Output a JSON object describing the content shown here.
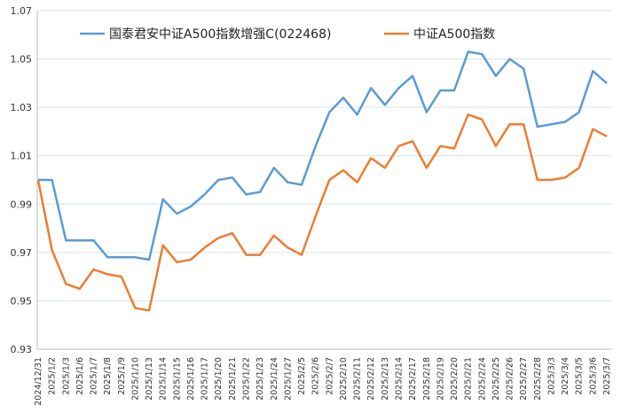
{
  "chart_data": {
    "type": "line",
    "categories": [
      "2024/12/31",
      "2025/1/2",
      "2025/1/3",
      "2025/1/6",
      "2025/1/7",
      "2025/1/8",
      "2025/1/9",
      "2025/1/10",
      "2025/1/13",
      "2025/1/14",
      "2025/1/15",
      "2025/1/16",
      "2025/1/17",
      "2025/1/20",
      "2025/1/21",
      "2025/1/22",
      "2025/1/23",
      "2025/1/24",
      "2025/1/27",
      "2025/2/5",
      "2025/2/6",
      "2025/2/7",
      "2025/2/10",
      "2025/2/11",
      "2025/2/12",
      "2025/2/13",
      "2025/2/14",
      "2025/2/17",
      "2025/2/18",
      "2025/2/19",
      "2025/2/20",
      "2025/2/21",
      "2025/2/24",
      "2025/2/25",
      "2025/2/26",
      "2025/2/27",
      "2025/2/28",
      "2025/3/3",
      "2025/3/4",
      "2025/3/5",
      "2025/3/6",
      "2025/3/7"
    ],
    "series": [
      {
        "name": "国泰君安中证A500指数增强C(022468)",
        "color": "#5b9bd5",
        "values": [
          1.0,
          1.0,
          0.975,
          0.975,
          0.975,
          0.968,
          0.968,
          0.968,
          0.967,
          0.992,
          0.986,
          0.989,
          0.994,
          1.0,
          1.001,
          0.994,
          0.995,
          1.005,
          0.999,
          0.998,
          1.014,
          1.028,
          1.034,
          1.027,
          1.038,
          1.031,
          1.038,
          1.043,
          1.028,
          1.037,
          1.037,
          1.053,
          1.052,
          1.043,
          1.05,
          1.046,
          1.022,
          1.023,
          1.024,
          1.028,
          1.045,
          1.04
        ]
      },
      {
        "name": "中证A500指数",
        "color": "#ed7d31",
        "values": [
          1.0,
          0.971,
          0.957,
          0.955,
          0.963,
          0.961,
          0.96,
          0.947,
          0.946,
          0.973,
          0.966,
          0.967,
          0.972,
          0.976,
          0.978,
          0.969,
          0.969,
          0.977,
          0.972,
          0.969,
          0.985,
          1.0,
          1.004,
          0.999,
          1.009,
          1.005,
          1.014,
          1.016,
          1.005,
          1.014,
          1.013,
          1.027,
          1.025,
          1.014,
          1.023,
          1.023,
          1.0,
          1.0,
          1.001,
          1.005,
          1.021,
          1.018
        ]
      }
    ],
    "ylim": [
      0.93,
      1.07
    ],
    "yticks": [
      0.93,
      0.95,
      0.97,
      0.99,
      1.01,
      1.03,
      1.05,
      1.07
    ],
    "grid": true,
    "legend": "top"
  }
}
